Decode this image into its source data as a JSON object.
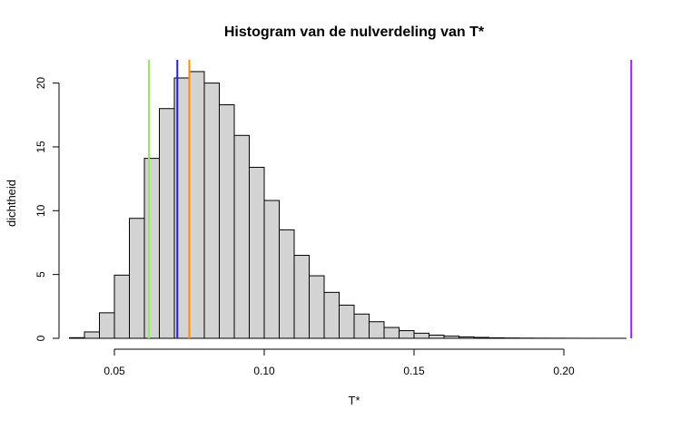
{
  "chart_data": {
    "type": "bar",
    "title": "Histogram van de nulverdeling van T*",
    "xlabel": "T*",
    "ylabel": "dichtheid",
    "xlim": [
      0.03,
      0.23
    ],
    "ylim": [
      0,
      22
    ],
    "x_ticks": [
      0.05,
      0.1,
      0.15,
      0.2
    ],
    "x_tick_labels": [
      "0.05",
      "0.10",
      "0.15",
      "0.20"
    ],
    "y_ticks": [
      0,
      5,
      10,
      15,
      20
    ],
    "y_tick_labels": [
      "0",
      "5",
      "10",
      "15",
      "20"
    ],
    "bin_width": 0.005,
    "bins": [
      {
        "x0": 0.035,
        "x1": 0.04,
        "value": 0.05
      },
      {
        "x0": 0.04,
        "x1": 0.045,
        "value": 0.5
      },
      {
        "x0": 0.045,
        "x1": 0.05,
        "value": 2.0
      },
      {
        "x0": 0.05,
        "x1": 0.055,
        "value": 4.95
      },
      {
        "x0": 0.055,
        "x1": 0.06,
        "value": 9.4
      },
      {
        "x0": 0.06,
        "x1": 0.065,
        "value": 14.1
      },
      {
        "x0": 0.065,
        "x1": 0.07,
        "value": 18.0
      },
      {
        "x0": 0.07,
        "x1": 0.075,
        "value": 20.4
      },
      {
        "x0": 0.075,
        "x1": 0.08,
        "value": 20.9
      },
      {
        "x0": 0.08,
        "x1": 0.085,
        "value": 20.0
      },
      {
        "x0": 0.085,
        "x1": 0.09,
        "value": 18.3
      },
      {
        "x0": 0.09,
        "x1": 0.095,
        "value": 15.9
      },
      {
        "x0": 0.095,
        "x1": 0.1,
        "value": 13.4
      },
      {
        "x0": 0.1,
        "x1": 0.105,
        "value": 10.8
      },
      {
        "x0": 0.105,
        "x1": 0.11,
        "value": 8.5
      },
      {
        "x0": 0.11,
        "x1": 0.115,
        "value": 6.5
      },
      {
        "x0": 0.115,
        "x1": 0.12,
        "value": 4.9
      },
      {
        "x0": 0.12,
        "x1": 0.125,
        "value": 3.6
      },
      {
        "x0": 0.125,
        "x1": 0.13,
        "value": 2.6
      },
      {
        "x0": 0.13,
        "x1": 0.135,
        "value": 1.9
      },
      {
        "x0": 0.135,
        "x1": 0.14,
        "value": 1.3
      },
      {
        "x0": 0.14,
        "x1": 0.145,
        "value": 0.85
      },
      {
        "x0": 0.145,
        "x1": 0.15,
        "value": 0.6
      },
      {
        "x0": 0.15,
        "x1": 0.155,
        "value": 0.4
      },
      {
        "x0": 0.155,
        "x1": 0.16,
        "value": 0.25
      },
      {
        "x0": 0.16,
        "x1": 0.165,
        "value": 0.17
      },
      {
        "x0": 0.165,
        "x1": 0.17,
        "value": 0.11
      },
      {
        "x0": 0.17,
        "x1": 0.175,
        "value": 0.07
      },
      {
        "x0": 0.175,
        "x1": 0.18,
        "value": 0.04
      },
      {
        "x0": 0.18,
        "x1": 0.185,
        "value": 0.025
      },
      {
        "x0": 0.185,
        "x1": 0.19,
        "value": 0.015
      },
      {
        "x0": 0.19,
        "x1": 0.195,
        "value": 0.01
      },
      {
        "x0": 0.195,
        "x1": 0.2,
        "value": 0.008
      },
      {
        "x0": 0.2,
        "x1": 0.205,
        "value": 0.005
      },
      {
        "x0": 0.205,
        "x1": 0.21,
        "value": 0.003
      },
      {
        "x0": 0.21,
        "x1": 0.215,
        "value": 0.002
      },
      {
        "x0": 0.215,
        "x1": 0.22,
        "value": 0.001
      }
    ],
    "reference_lines": [
      {
        "x": 0.0615,
        "color": "#90ee50"
      },
      {
        "x": 0.071,
        "color": "#2222cc"
      },
      {
        "x": 0.075,
        "color": "#ff8c00"
      },
      {
        "x": 0.2225,
        "color": "#a020f0"
      }
    ],
    "bar_fill": "#d3d3d3",
    "bar_stroke": "#000000",
    "grid": false,
    "legend": "none"
  }
}
